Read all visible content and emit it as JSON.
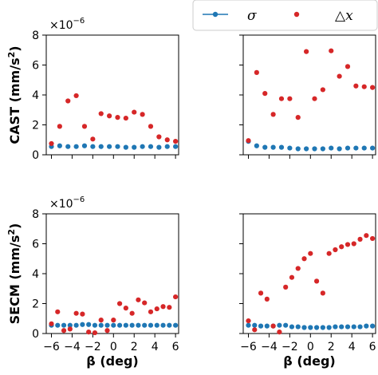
{
  "legend": {
    "items": [
      {
        "label": "σ",
        "color": "#1f77b4",
        "marker": "line-dot"
      },
      {
        "label": "△x",
        "color": "#d62728",
        "marker": "dot"
      }
    ]
  },
  "colors": {
    "sigma": "#1f77b4",
    "dx": "#d62728"
  },
  "chart_data": [
    {
      "type": "scatter",
      "panel": "top-left",
      "ylabel": "CAST (mm/s²)",
      "ylabel_parts": {
        "prefix": "CAST (mm/s",
        "sup": "2",
        "suffix": ")"
      },
      "xlabel": "",
      "sci_prefix": "×10",
      "sci_exp": "−6",
      "xlim": [
        -6.5,
        6.3
      ],
      "ylim": [
        0,
        8
      ],
      "xticks": [
        -6,
        -4,
        -2,
        0,
        2,
        4,
        6
      ],
      "yticks": [
        0,
        2,
        4,
        6,
        8
      ],
      "show_xticklabels": false,
      "show_yticklabels": true,
      "series": [
        {
          "name": "σ",
          "color": "#1f77b4",
          "x": [
            -6,
            -5.2,
            -4.4,
            -3.6,
            -2.8,
            -2.0,
            -1.2,
            -0.4,
            0.4,
            1.2,
            2.0,
            2.8,
            3.6,
            4.4,
            5.2,
            6.0
          ],
          "y": [
            0.55,
            0.6,
            0.55,
            0.55,
            0.6,
            0.55,
            0.55,
            0.55,
            0.55,
            0.5,
            0.5,
            0.55,
            0.55,
            0.5,
            0.55,
            0.55
          ]
        },
        {
          "name": "△x",
          "color": "#d62728",
          "x": [
            -6,
            -5.2,
            -4.4,
            -3.6,
            -2.8,
            -2.0,
            -1.2,
            -0.4,
            0.4,
            1.2,
            2.0,
            2.8,
            3.6,
            4.4,
            5.2,
            6.0
          ],
          "y": [
            0.75,
            1.9,
            3.6,
            3.95,
            1.9,
            1.05,
            2.75,
            2.6,
            2.5,
            2.45,
            2.85,
            2.7,
            1.9,
            1.2,
            1.0,
            0.9
          ]
        }
      ]
    },
    {
      "type": "scatter",
      "panel": "top-right",
      "ylabel": "",
      "xlabel": "",
      "xlim": [
        -6.5,
        6.3
      ],
      "ylim": [
        0,
        8
      ],
      "xticks": [
        -6,
        -4,
        -2,
        0,
        2,
        4,
        6
      ],
      "yticks": [
        0,
        2,
        4,
        6,
        8
      ],
      "show_xticklabels": false,
      "show_yticklabels": false,
      "series": [
        {
          "name": "σ",
          "color": "#1f77b4",
          "x": [
            -6,
            -5.2,
            -4.4,
            -3.6,
            -2.8,
            -2.0,
            -1.2,
            -0.4,
            0.4,
            1.2,
            2.0,
            2.8,
            3.6,
            4.4,
            5.2,
            6.0
          ],
          "y": [
            0.9,
            0.6,
            0.5,
            0.5,
            0.5,
            0.45,
            0.4,
            0.4,
            0.4,
            0.4,
            0.45,
            0.4,
            0.45,
            0.45,
            0.45,
            0.45
          ]
        },
        {
          "name": "△x",
          "color": "#d62728",
          "x": [
            -6,
            -5.2,
            -4.4,
            -3.6,
            -2.8,
            -2.0,
            -1.2,
            -0.4,
            0.4,
            1.2,
            2.0,
            2.8,
            3.6,
            4.4,
            5.2,
            6.0
          ],
          "y": [
            0.95,
            5.5,
            4.1,
            2.7,
            3.75,
            3.75,
            2.5,
            6.9,
            3.75,
            4.35,
            6.95,
            5.25,
            5.9,
            4.6,
            4.55,
            4.5
          ]
        }
      ]
    },
    {
      "type": "scatter",
      "panel": "bottom-left",
      "ylabel": "SECM (mm/s²)",
      "ylabel_parts": {
        "prefix": "SECM (mm/s",
        "sup": "2",
        "suffix": ")"
      },
      "xlabel": "β (deg)",
      "sci_prefix": "×10",
      "sci_exp": "−6",
      "xlim": [
        -6.5,
        6.3
      ],
      "ylim": [
        0,
        8
      ],
      "xticks": [
        -6,
        -4,
        -2,
        0,
        2,
        4,
        6
      ],
      "xticklabels": [
        "−6",
        "−4",
        "−2",
        "0",
        "2",
        "4",
        "6"
      ],
      "yticks": [
        0,
        2,
        4,
        6,
        8
      ],
      "show_xticklabels": true,
      "show_yticklabels": true,
      "series": [
        {
          "name": "σ",
          "color": "#1f77b4",
          "x": [
            -6,
            -5.4,
            -4.8,
            -4.2,
            -3.6,
            -3.0,
            -2.4,
            -1.8,
            -1.2,
            -0.6,
            0.0,
            0.6,
            1.2,
            1.8,
            2.4,
            3.0,
            3.6,
            4.2,
            4.8,
            5.4,
            6.0
          ],
          "y": [
            0.55,
            0.55,
            0.55,
            0.55,
            0.55,
            0.6,
            0.6,
            0.55,
            0.55,
            0.55,
            0.55,
            0.55,
            0.55,
            0.55,
            0.55,
            0.55,
            0.55,
            0.55,
            0.55,
            0.55,
            0.55
          ]
        },
        {
          "name": "△x",
          "color": "#d62728",
          "x": [
            -6,
            -5.4,
            -4.8,
            -4.2,
            -3.6,
            -3.0,
            -2.4,
            -1.8,
            -1.2,
            -0.6,
            0.0,
            0.6,
            1.2,
            1.8,
            2.4,
            3.0,
            3.6,
            4.2,
            4.8,
            5.4,
            6.0
          ],
          "y": [
            0.65,
            1.45,
            0.2,
            0.3,
            1.35,
            1.3,
            0.1,
            0.05,
            0.9,
            0.2,
            0.9,
            2.0,
            1.7,
            1.35,
            2.25,
            2.05,
            1.45,
            1.65,
            1.8,
            1.75,
            2.45
          ]
        }
      ]
    },
    {
      "type": "scatter",
      "panel": "bottom-right",
      "ylabel": "",
      "xlabel": "β (deg)",
      "xlim": [
        -6.5,
        6.3
      ],
      "ylim": [
        0,
        8
      ],
      "xticks": [
        -6,
        -4,
        -2,
        0,
        2,
        4,
        6
      ],
      "xticklabels": [
        "−6",
        "−4",
        "−2",
        "0",
        "2",
        "4",
        "6"
      ],
      "yticks": [
        0,
        2,
        4,
        6,
        8
      ],
      "show_xticklabels": true,
      "show_yticklabels": false,
      "series": [
        {
          "name": "σ",
          "color": "#1f77b4",
          "x": [
            -6,
            -5.4,
            -4.8,
            -4.2,
            -3.6,
            -3.0,
            -2.4,
            -1.8,
            -1.2,
            -0.6,
            0.0,
            0.6,
            1.2,
            1.8,
            2.4,
            3.0,
            3.6,
            4.2,
            4.8,
            5.4,
            6.0
          ],
          "y": [
            0.55,
            0.55,
            0.5,
            0.5,
            0.5,
            0.55,
            0.55,
            0.45,
            0.45,
            0.4,
            0.4,
            0.4,
            0.4,
            0.4,
            0.45,
            0.45,
            0.45,
            0.45,
            0.45,
            0.5,
            0.5
          ]
        },
        {
          "name": "△x",
          "color": "#d62728",
          "x": [
            -6,
            -5.4,
            -4.8,
            -4.2,
            -3.6,
            -3.0,
            -2.4,
            -1.8,
            -1.2,
            -0.6,
            0.0,
            0.6,
            1.2,
            1.8,
            2.4,
            3.0,
            3.6,
            4.2,
            4.8,
            5.4,
            6.0
          ],
          "y": [
            0.85,
            0.25,
            2.7,
            2.3,
            0.5,
            0.1,
            3.1,
            3.75,
            4.35,
            5.0,
            5.35,
            3.5,
            2.7,
            5.35,
            5.6,
            5.8,
            5.95,
            6.0,
            6.3,
            6.55,
            6.35
          ]
        }
      ]
    }
  ]
}
